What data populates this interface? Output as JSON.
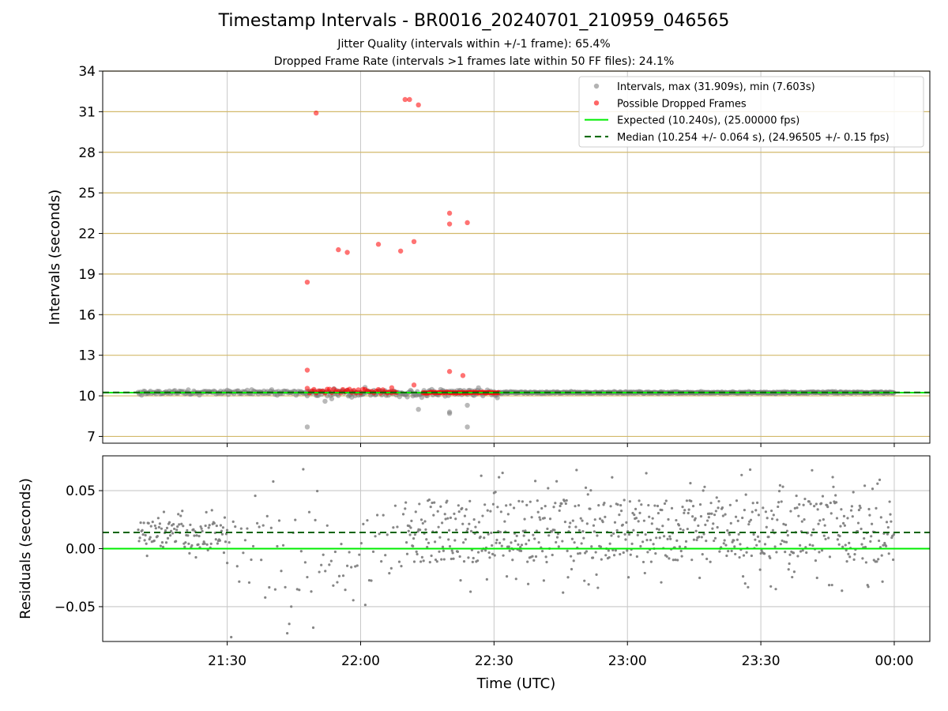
{
  "title": "Timestamp Intervals - BR0016_20240701_210959_046565",
  "subtitle_1": "Jitter Quality (intervals within +/-1 frame): 65.4%",
  "subtitle_2": "Dropped Frame Rate (intervals >1 frames late within 50 FF files): 24.1%",
  "colors": {
    "intervals": "#808080",
    "dropped": "#ff0000",
    "expected": "#00ee00",
    "median": "#006400",
    "ygrid": "#d2b96a",
    "xgrid": "#c8c8c8"
  },
  "chart_data": [
    {
      "type": "scatter",
      "id": "intervals",
      "ylabel": "Intervals (seconds)",
      "xlabel": "",
      "ylim": [
        6.5,
        34
      ],
      "yticks": [
        7,
        10,
        13,
        16,
        19,
        22,
        25,
        28,
        31,
        34
      ],
      "xlim": [
        "21:02",
        "00:08"
      ],
      "xticks": [
        "21:30",
        "22:00",
        "22:30",
        "23:00",
        "23:30",
        "00:00"
      ],
      "grid": true,
      "legend_position": "top-right",
      "expected_interval": 10.24,
      "median_interval": 10.254,
      "series": [
        {
          "name": "Intervals, max (31.909s), min (7.603s)",
          "kind": "scatter",
          "segments": [
            {
              "start": "21:10",
              "end": "21:50",
              "center": 10.25,
              "spread": 0.15,
              "step_min": 0.25
            },
            {
              "start": "21:50",
              "end": "22:31",
              "center": 10.2,
              "spread": 0.3,
              "step_min": 0.25
            },
            {
              "start": "22:31",
              "end": "00:00",
              "center": 10.24,
              "spread": 0.06,
              "step_min": 0.17
            }
          ],
          "points": [
            {
              "x": "21:48",
              "y": 7.7
            },
            {
              "x": "21:52",
              "y": 9.6
            },
            {
              "x": "22:13",
              "y": 9.0
            },
            {
              "x": "22:20",
              "y": 8.8
            },
            {
              "x": "22:20",
              "y": 8.7
            },
            {
              "x": "22:24",
              "y": 9.3
            },
            {
              "x": "22:24",
              "y": 7.7
            },
            {
              "x": "21:48",
              "y": 10.0
            },
            {
              "x": "21:58",
              "y": 9.9
            }
          ]
        },
        {
          "name": "Possible Dropped Frames",
          "kind": "scatter",
          "segments": [
            {
              "start": "21:48",
              "end": "22:08",
              "center": 10.35,
              "spread": 0.2,
              "step_min": 0.5
            },
            {
              "start": "22:14",
              "end": "22:31",
              "center": 10.24,
              "spread": 0.03,
              "step_min": 0.34
            }
          ],
          "points": [
            {
              "x": "21:48",
              "y": 18.4
            },
            {
              "x": "21:50",
              "y": 30.9
            },
            {
              "x": "21:48",
              "y": 11.9
            },
            {
              "x": "21:55",
              "y": 20.8
            },
            {
              "x": "21:57",
              "y": 20.6
            },
            {
              "x": "22:04",
              "y": 21.2
            },
            {
              "x": "22:09",
              "y": 20.7
            },
            {
              "x": "22:10",
              "y": 31.9
            },
            {
              "x": "22:11",
              "y": 31.9
            },
            {
              "x": "22:12",
              "y": 21.4
            },
            {
              "x": "22:13",
              "y": 31.5
            },
            {
              "x": "22:20",
              "y": 23.5
            },
            {
              "x": "22:20",
              "y": 22.7
            },
            {
              "x": "22:24",
              "y": 22.8
            },
            {
              "x": "22:20",
              "y": 11.8
            },
            {
              "x": "22:23",
              "y": 11.5
            },
            {
              "x": "22:12",
              "y": 10.8
            },
            {
              "x": "22:07",
              "y": 10.6
            }
          ]
        },
        {
          "name": "Expected (10.240s), (25.00000 fps)",
          "kind": "hline",
          "y": 10.24
        },
        {
          "name": "Median (10.254 +/- 0.064 s), (24.96505 +/- 0.15 fps)",
          "kind": "hline-dashed",
          "y": 10.254
        }
      ]
    },
    {
      "type": "scatter",
      "id": "residuals",
      "ylabel": "Residuals (seconds)",
      "xlabel": "Time (UTC)",
      "ylim": [
        -0.08,
        0.08
      ],
      "yticks": [
        -0.05,
        0.0,
        0.05
      ],
      "ytick_labels": [
        "−0.05",
        "0.00",
        "0.05"
      ],
      "xlim": [
        "21:02",
        "00:08"
      ],
      "xticks": [
        "21:30",
        "22:00",
        "22:30",
        "23:00",
        "23:30",
        "00:00"
      ],
      "grid": true,
      "expected_residual": 0.0,
      "median_residual": 0.014,
      "series": [
        {
          "name": "Residuals",
          "kind": "scatter",
          "segments": [
            {
              "start": "21:10",
              "end": "21:30",
              "center": 0.012,
              "spread": 0.016,
              "step_min": 0.18
            },
            {
              "start": "21:30",
              "end": "22:10",
              "center": 0.0,
              "spread": 0.055,
              "step_min": 0.45
            },
            {
              "start": "22:10",
              "end": "00:00",
              "center": 0.015,
              "spread": 0.038,
              "step_min": 0.16
            }
          ]
        }
      ]
    }
  ]
}
